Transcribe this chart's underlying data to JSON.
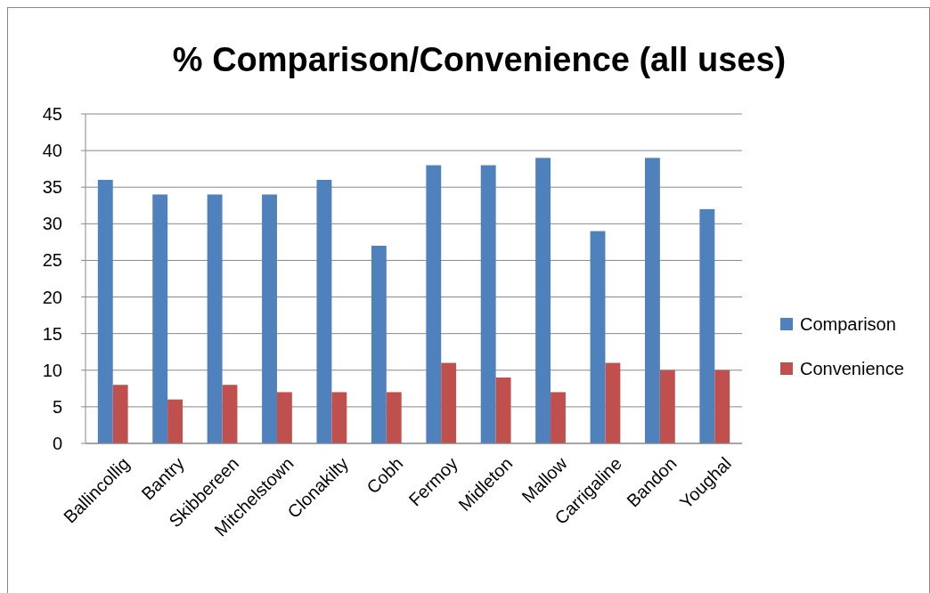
{
  "chart_data": {
    "type": "bar",
    "title": "% Comparison/Convenience  (all uses)",
    "categories": [
      "Ballincollig",
      "Bantry",
      "Skibbereen",
      "Mitchelstown",
      "Clonakilty",
      "Cobh",
      "Fermoy",
      "Midleton",
      "Mallow",
      "Carrigaline",
      "Bandon",
      "Youghal"
    ],
    "series": [
      {
        "name": "Comparison",
        "color": "#4f81bd",
        "values": [
          36,
          34,
          34,
          34,
          36,
          27,
          38,
          38,
          39,
          29,
          39,
          32
        ]
      },
      {
        "name": "Convenience",
        "color": "#c0504d",
        "values": [
          8,
          6,
          8,
          7,
          7,
          7,
          11,
          9,
          7,
          11,
          10,
          10
        ]
      }
    ],
    "ylim": [
      0,
      45
    ],
    "yticks": [
      0,
      5,
      10,
      15,
      20,
      25,
      30,
      35,
      40,
      45
    ],
    "grid": "y",
    "legend": "right"
  }
}
